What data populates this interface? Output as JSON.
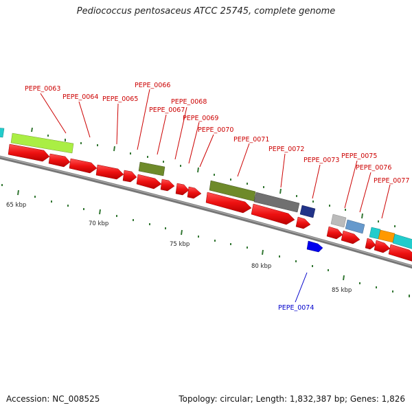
{
  "title": "Pediococcus pentosaceus ATCC 25745, complete genome",
  "accession": "Accession: NC_008525",
  "stats": "Topology: circular; Length: 1,832,387 bp; Genes: 1,826",
  "scale_labels": [
    "65 kbp",
    "70 kbp",
    "75 kbp",
    "80 kbp",
    "85 kbp"
  ],
  "gene_labels": [
    "PEPE_0063",
    "PEPE_0064",
    "PEPE_0065",
    "PEPE_0066",
    "PEPE_0067",
    "PEPE_0068",
    "PEPE_0069",
    "PEPE_0070",
    "PEPE_0071",
    "PEPE_0072",
    "PEPE_0073",
    "PEPE_0074",
    "PEPE_0075",
    "PEPE_0076",
    "PEPE_0077"
  ],
  "colors": {
    "cds": "#ee1111",
    "rna_green": "#6e8a2a",
    "light_green": "#aaee44",
    "gray": "#707070",
    "light_gray": "#bbbbbb",
    "steel_blue": "#6699cc",
    "navy": "#223388",
    "blue": "#0000ee",
    "cyan": "#22cccc",
    "orange": "#ff9900",
    "tick": "#337733"
  }
}
